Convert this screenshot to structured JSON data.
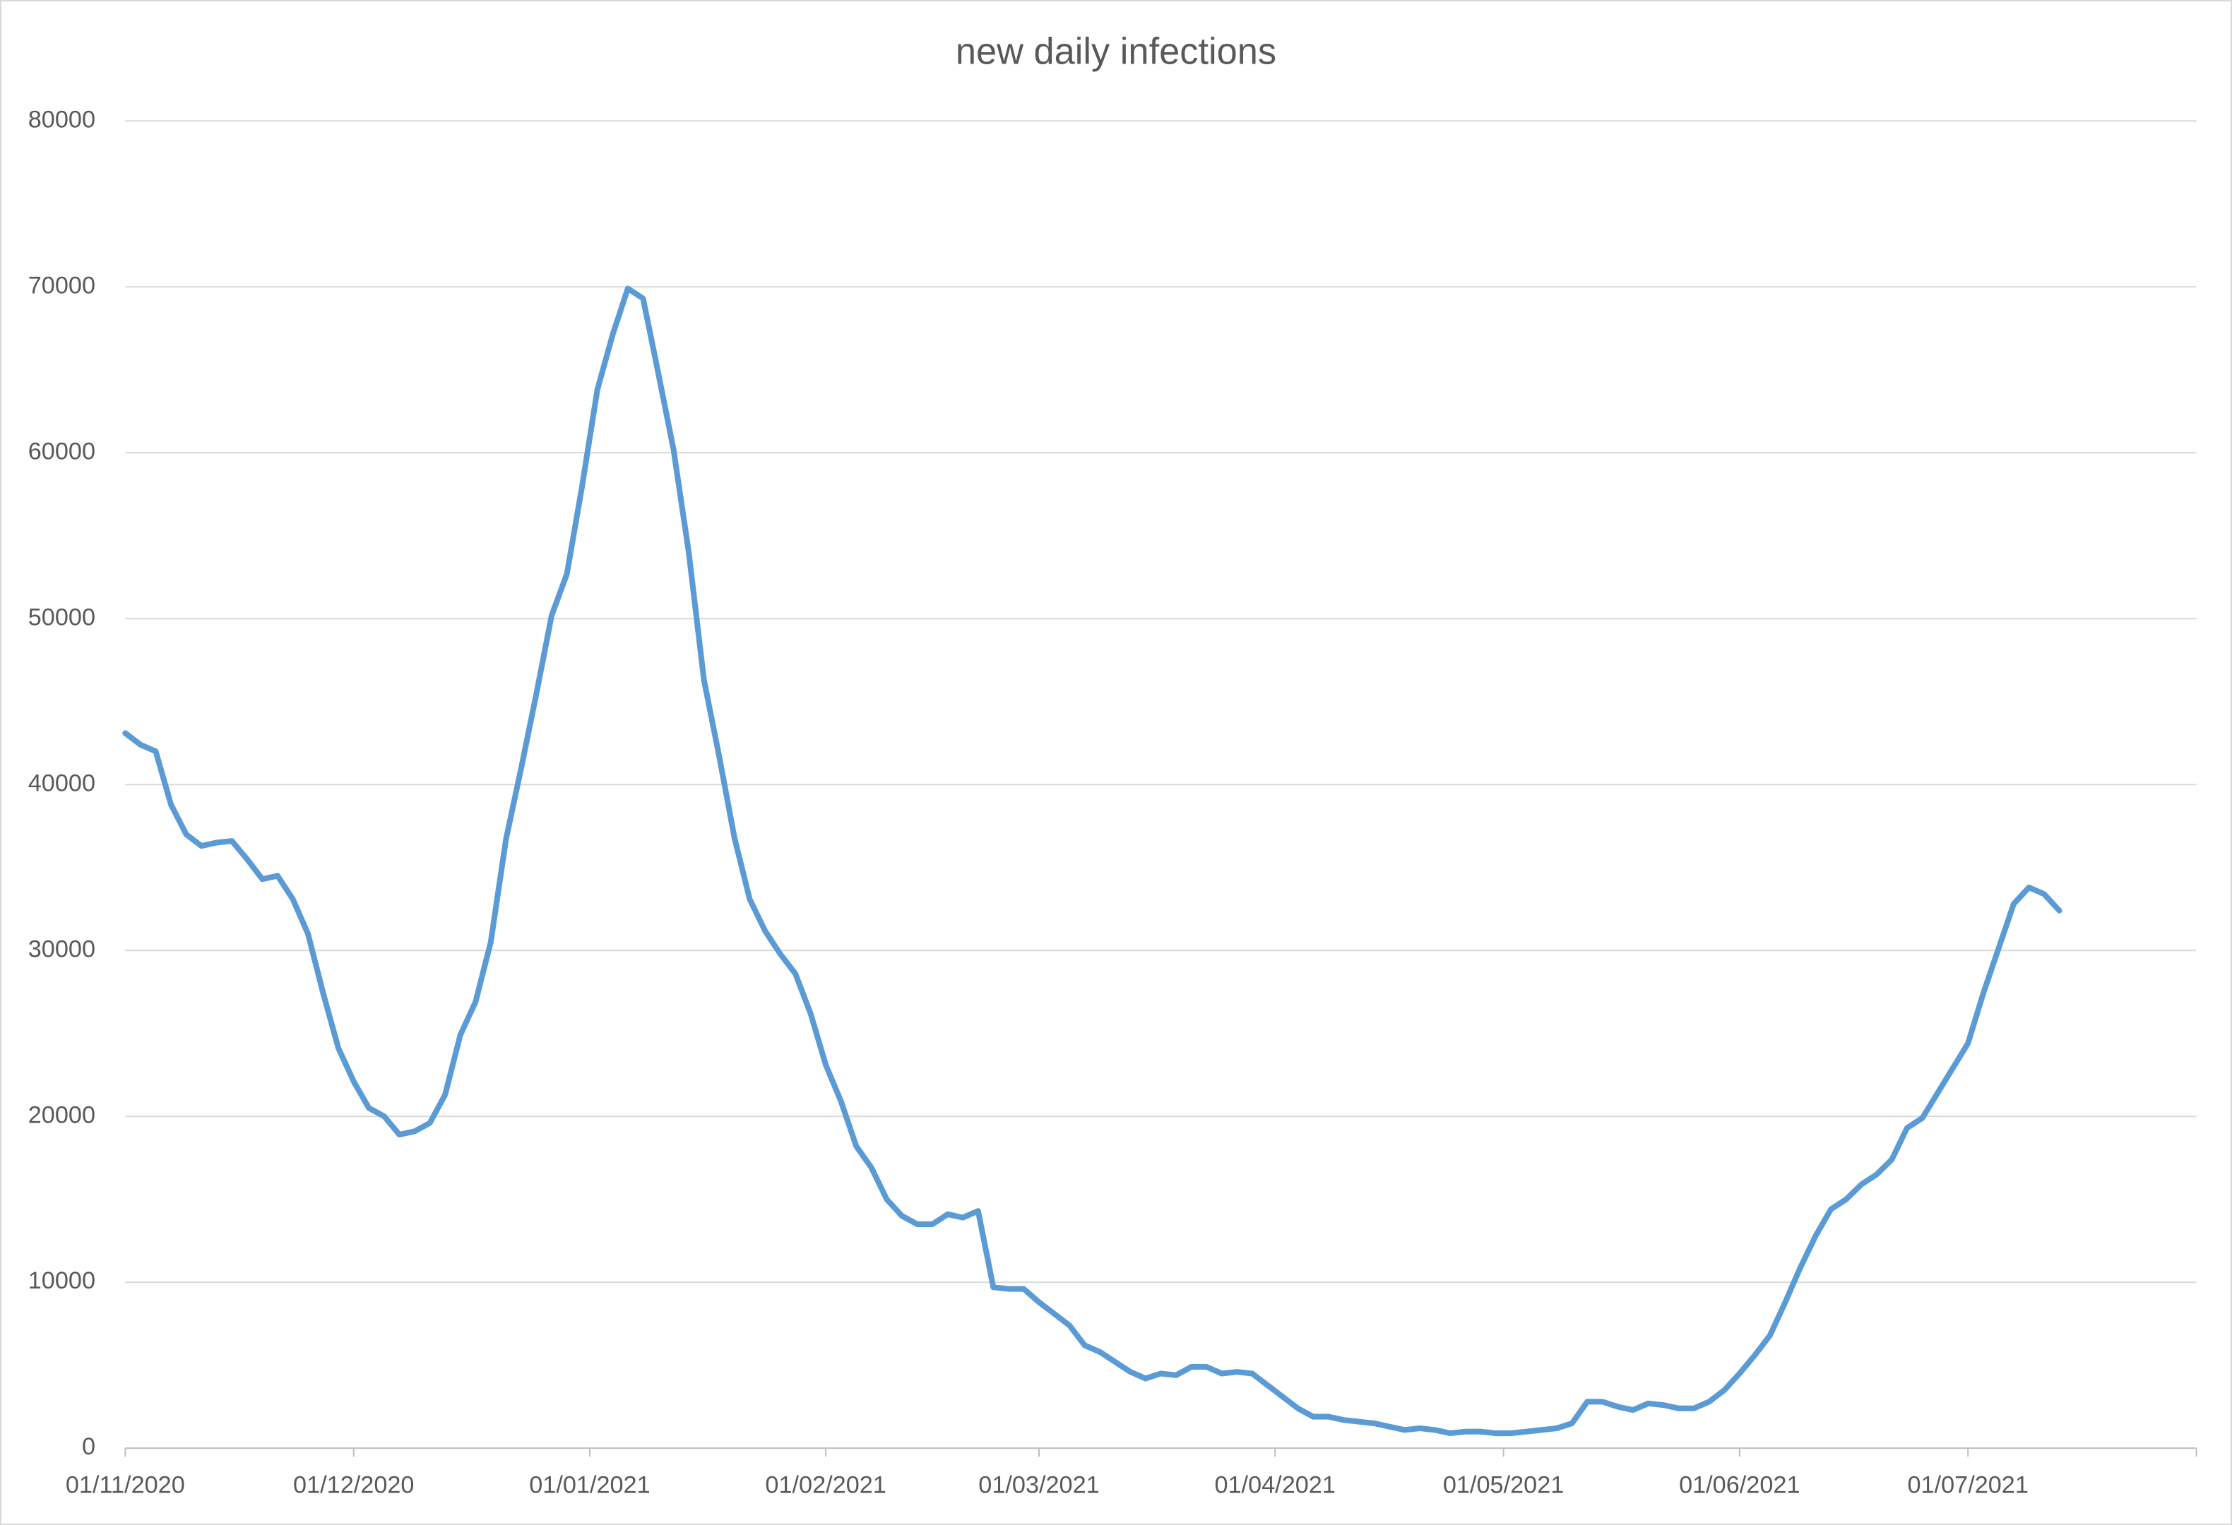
{
  "chart_data": {
    "type": "line",
    "title": "new daily infections",
    "color": "#5b9bd5",
    "grid": true,
    "x": [
      "01/11/2020",
      "03/11/2020",
      "05/11/2020",
      "07/11/2020",
      "09/11/2020",
      "11/11/2020",
      "13/11/2020",
      "15/11/2020",
      "17/11/2020",
      "19/11/2020",
      "21/11/2020",
      "23/11/2020",
      "25/11/2020",
      "27/11/2020",
      "29/11/2020",
      "01/12/2020",
      "03/12/2020",
      "05/12/2020",
      "07/12/2020",
      "09/12/2020",
      "11/12/2020",
      "13/12/2020",
      "15/12/2020",
      "17/12/2020",
      "19/12/2020",
      "21/12/2020",
      "23/12/2020",
      "25/12/2020",
      "27/12/2020",
      "29/12/2020",
      "31/12/2020",
      "02/01/2021",
      "04/01/2021",
      "06/01/2021",
      "08/01/2021",
      "10/01/2021",
      "12/01/2021",
      "14/01/2021",
      "16/01/2021",
      "18/01/2021",
      "20/01/2021",
      "22/01/2021",
      "24/01/2021",
      "26/01/2021",
      "28/01/2021",
      "30/01/2021",
      "01/02/2021",
      "03/02/2021",
      "05/02/2021",
      "07/02/2021",
      "09/02/2021",
      "11/02/2021",
      "13/02/2021",
      "15/02/2021",
      "17/02/2021",
      "19/02/2021",
      "21/02/2021",
      "23/02/2021",
      "25/02/2021",
      "27/02/2021",
      "01/03/2021",
      "03/03/2021",
      "05/03/2021",
      "07/03/2021",
      "09/03/2021",
      "11/03/2021",
      "13/03/2021",
      "15/03/2021",
      "17/03/2021",
      "19/03/2021",
      "21/03/2021",
      "23/03/2021",
      "25/03/2021",
      "27/03/2021",
      "29/03/2021",
      "31/03/2021",
      "02/04/2021",
      "04/04/2021",
      "06/04/2021",
      "08/04/2021",
      "10/04/2021",
      "12/04/2021",
      "14/04/2021",
      "16/04/2021",
      "18/04/2021",
      "20/04/2021",
      "22/04/2021",
      "24/04/2021",
      "26/04/2021",
      "28/04/2021",
      "30/04/2021",
      "02/05/2021",
      "04/05/2021",
      "06/05/2021",
      "08/05/2021",
      "10/05/2021",
      "12/05/2021",
      "14/05/2021",
      "16/05/2021",
      "18/05/2021",
      "20/05/2021",
      "22/05/2021",
      "24/05/2021",
      "26/05/2021",
      "28/05/2021",
      "30/05/2021",
      "01/06/2021",
      "03/06/2021",
      "05/06/2021",
      "07/06/2021",
      "09/06/2021",
      "11/06/2021",
      "13/06/2021",
      "15/06/2021",
      "17/06/2021",
      "19/06/2021",
      "21/06/2021",
      "23/06/2021",
      "25/06/2021",
      "27/06/2021",
      "29/06/2021",
      "01/07/2021",
      "03/07/2021",
      "05/07/2021",
      "07/07/2021",
      "09/07/2021",
      "11/07/2021",
      "13/07/2021"
    ],
    "values": [
      43100,
      42400,
      42000,
      38800,
      37000,
      36300,
      36500,
      36600,
      35500,
      34300,
      34500,
      33100,
      31000,
      27400,
      24100,
      22100,
      20500,
      20000,
      18900,
      19100,
      19600,
      21300,
      24900,
      26900,
      30500,
      36700,
      41000,
      45500,
      50200,
      52700,
      58000,
      63800,
      67100,
      69900,
      69300,
      64800,
      60200,
      54000,
      46300,
      41700,
      36800,
      33100,
      31200,
      29800,
      28600,
      26200,
      23100,
      20900,
      18200,
      16900,
      15000,
      14000,
      13500,
      13500,
      14100,
      13900,
      14300,
      9700,
      9600,
      9600,
      8800,
      8100,
      7400,
      6200,
      5800,
      5200,
      4600,
      4200,
      4500,
      4400,
      4900,
      4900,
      4500,
      4600,
      4500,
      3800,
      3100,
      2400,
      1900,
      1900,
      1700,
      1600,
      1500,
      1300,
      1100,
      1200,
      1100,
      900,
      1000,
      1000,
      900,
      900,
      1000,
      1100,
      1200,
      1500,
      2800,
      2800,
      2500,
      2300,
      2700,
      2600,
      2400,
      2400,
      2800,
      3500,
      4500,
      5600,
      6800,
      8800,
      10900,
      12800,
      14400,
      15000,
      15900,
      16500,
      17400,
      19300,
      19900,
      21400,
      22900,
      24400,
      27400,
      30100,
      32800,
      33800,
      33400,
      32400
    ],
    "xlim": [
      "01/11/2020",
      "31/07/2021"
    ],
    "xticks": [
      "01/11/2020",
      "01/12/2020",
      "01/01/2021",
      "01/02/2021",
      "01/03/2021",
      "01/04/2021",
      "01/05/2021",
      "01/06/2021",
      "01/07/2021"
    ],
    "ylim": [
      0,
      80000
    ],
    "yticks": [
      0,
      10000,
      20000,
      30000,
      40000,
      50000,
      60000,
      70000,
      80000
    ]
  }
}
